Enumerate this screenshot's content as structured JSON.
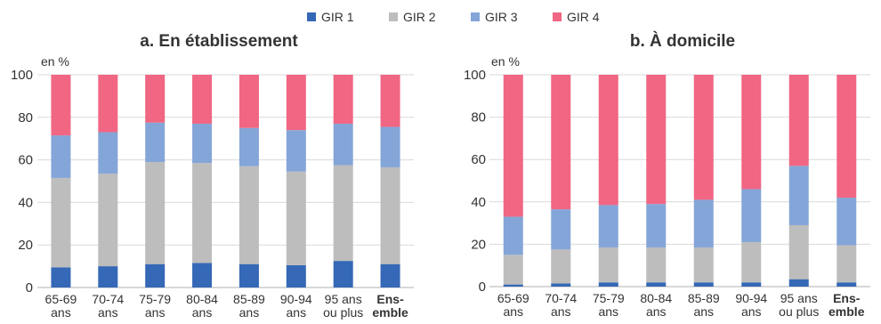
{
  "legend": {
    "entries": [
      {
        "label": "GIR 1",
        "color": "#3568b6"
      },
      {
        "label": "GIR 2",
        "color": "#bdbdbd"
      },
      {
        "label": "GIR 3",
        "color": "#84a5d8"
      },
      {
        "label": "GIR 4",
        "color": "#f06683"
      }
    ]
  },
  "chart_data": [
    {
      "type": "bar",
      "stacked": true,
      "title": "a. En établissement",
      "ylabel": "en %",
      "ylim": [
        0,
        100
      ],
      "yticks": [
        0,
        20,
        40,
        60,
        80,
        100
      ],
      "grid": true,
      "legend_position": "top",
      "categories": [
        {
          "lines": [
            "65-69",
            "ans"
          ],
          "bold": false
        },
        {
          "lines": [
            "70-74",
            "ans"
          ],
          "bold": false
        },
        {
          "lines": [
            "75-79",
            "ans"
          ],
          "bold": false
        },
        {
          "lines": [
            "80-84",
            "ans"
          ],
          "bold": false
        },
        {
          "lines": [
            "85-89",
            "ans"
          ],
          "bold": false
        },
        {
          "lines": [
            "90-94",
            "ans"
          ],
          "bold": false
        },
        {
          "lines": [
            "95 ans",
            "ou plus"
          ],
          "bold": false
        },
        {
          "lines": [
            "Ens-",
            "emble"
          ],
          "bold": true
        }
      ],
      "series": [
        {
          "name": "GIR 1",
          "color": "#3568b6",
          "values": [
            9.5,
            10,
            11,
            11.5,
            11,
            10.5,
            12.5,
            11
          ]
        },
        {
          "name": "GIR 2",
          "color": "#bdbdbd",
          "values": [
            42,
            43.5,
            48,
            47,
            46,
            44,
            45,
            45.5
          ]
        },
        {
          "name": "GIR 3",
          "color": "#84a5d8",
          "values": [
            20,
            19.5,
            18.5,
            18.5,
            18,
            19.5,
            19.5,
            19
          ]
        },
        {
          "name": "GIR 4",
          "color": "#f06683",
          "values": [
            28.5,
            27,
            22.5,
            23,
            25,
            26,
            23,
            24.5
          ]
        }
      ]
    },
    {
      "type": "bar",
      "stacked": true,
      "title": "b. À domicile",
      "ylabel": "en %",
      "ylim": [
        0,
        100
      ],
      "yticks": [
        0,
        20,
        40,
        60,
        80,
        100
      ],
      "grid": true,
      "legend_position": "top",
      "categories": [
        {
          "lines": [
            "65-69",
            "ans"
          ],
          "bold": false
        },
        {
          "lines": [
            "70-74",
            "ans"
          ],
          "bold": false
        },
        {
          "lines": [
            "75-79",
            "ans"
          ],
          "bold": false
        },
        {
          "lines": [
            "80-84",
            "ans"
          ],
          "bold": false
        },
        {
          "lines": [
            "85-89",
            "ans"
          ],
          "bold": false
        },
        {
          "lines": [
            "90-94",
            "ans"
          ],
          "bold": false
        },
        {
          "lines": [
            "95 ans",
            "ou plus"
          ],
          "bold": false
        },
        {
          "lines": [
            "Ens-",
            "emble"
          ],
          "bold": true
        }
      ],
      "series": [
        {
          "name": "GIR 1",
          "color": "#3568b6",
          "values": [
            1,
            1.5,
            2,
            2,
            2,
            2,
            3.5,
            2
          ]
        },
        {
          "name": "GIR 2",
          "color": "#bdbdbd",
          "values": [
            14,
            16,
            16.5,
            16.5,
            16.5,
            19,
            25.5,
            17.5
          ]
        },
        {
          "name": "GIR 3",
          "color": "#84a5d8",
          "values": [
            18,
            19,
            20,
            20.5,
            22.5,
            25,
            28,
            22.5
          ]
        },
        {
          "name": "GIR 4",
          "color": "#f06683",
          "values": [
            67,
            63.5,
            61.5,
            61,
            59,
            54,
            43,
            58
          ]
        }
      ]
    }
  ]
}
